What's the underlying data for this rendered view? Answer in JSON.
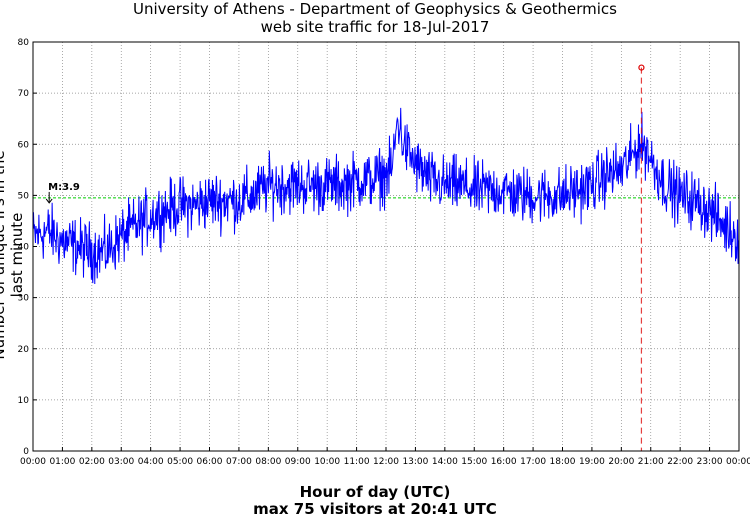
{
  "header": {
    "title_line1": "University of Athens - Department of Geophysics & Geothermics",
    "title_line2": "web site traffic for 18-Jul-2017"
  },
  "footer": {
    "xlabel": "Hour of day (UTC)",
    "summary": "max 75 visitors at 20:41 UTC"
  },
  "chart_data": {
    "type": "line",
    "ylabel": "Number of unique IPs in the last minute",
    "xlabel": "Hour of day (UTC)",
    "xlim_hours": [
      0,
      24
    ],
    "ylim": [
      0,
      80
    ],
    "x_ticks": [
      "00:00",
      "01:00",
      "02:00",
      "03:00",
      "04:00",
      "05:00",
      "06:00",
      "07:00",
      "08:00",
      "09:00",
      "10:00",
      "11:00",
      "12:00",
      "13:00",
      "14:00",
      "15:00",
      "16:00",
      "17:00",
      "18:00",
      "19:00",
      "20:00",
      "21:00",
      "22:00",
      "23:00",
      "00:00"
    ],
    "y_ticks": [
      0,
      10,
      20,
      30,
      40,
      50,
      60,
      70,
      80
    ],
    "grid": true,
    "series_color": "#0000ff",
    "reference_line": {
      "value": 49.5,
      "color": "#00cc00",
      "style": "dashed"
    },
    "annotation": {
      "text": "M:3.9",
      "x_hour": 0.55,
      "y": 49.5
    },
    "max_marker": {
      "time": "20:41",
      "x_hour": 20.683,
      "value": 75,
      "color": "#dd0000"
    },
    "series_hourly_mean": {
      "hours": [
        0,
        0.5,
        1,
        1.5,
        2,
        2.5,
        3,
        3.5,
        4,
        4.5,
        5,
        5.5,
        6,
        6.5,
        7,
        7.5,
        8,
        8.5,
        9,
        9.5,
        10,
        10.5,
        11,
        11.5,
        12,
        12.2,
        12.4,
        12.6,
        13,
        13.5,
        14,
        14.5,
        15,
        15.5,
        16,
        16.5,
        17,
        17.5,
        18,
        18.5,
        19,
        19.5,
        20,
        20.3,
        20.6,
        20.9,
        21,
        21.5,
        22,
        22.5,
        23,
        23.5,
        24
      ],
      "values": [
        42,
        43,
        41,
        40,
        39,
        39,
        42,
        44,
        46,
        47,
        48,
        48,
        49,
        49,
        49,
        50,
        52,
        52,
        52,
        52,
        52,
        52,
        53,
        53,
        54,
        55,
        65,
        60,
        56,
        53,
        52,
        52,
        51,
        51,
        51,
        50,
        50,
        50,
        50,
        51,
        52,
        54,
        55,
        57,
        60,
        59,
        57,
        52,
        50,
        49,
        47,
        44,
        42
      ]
    }
  }
}
